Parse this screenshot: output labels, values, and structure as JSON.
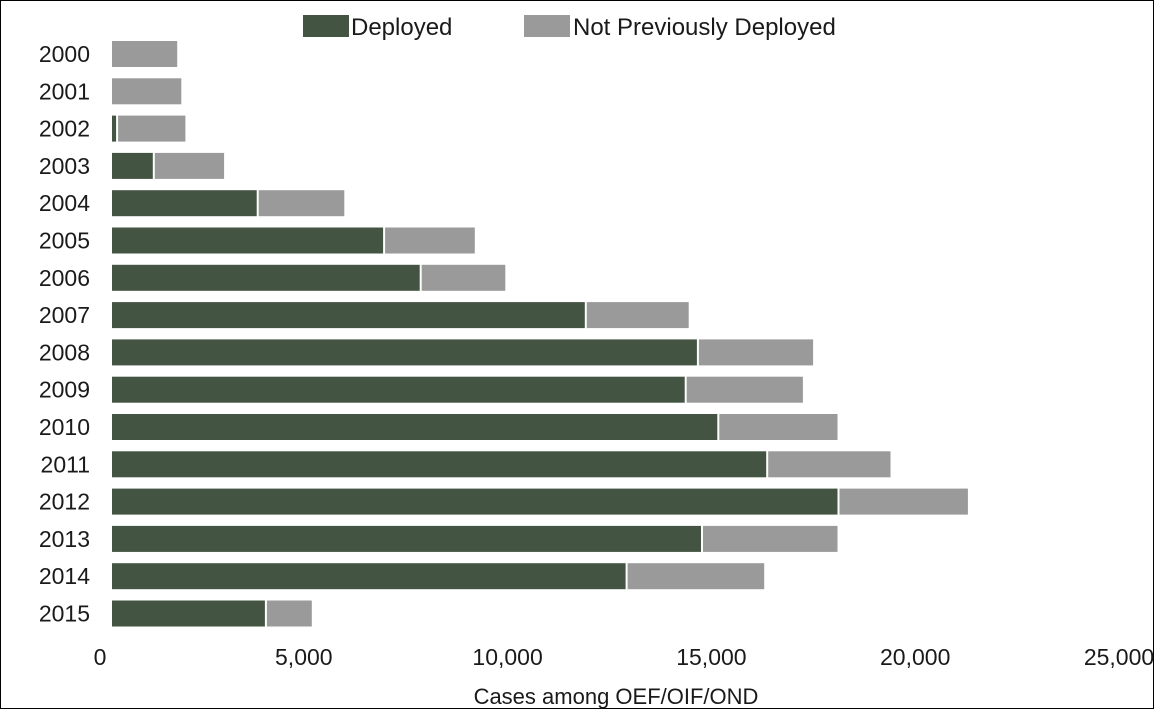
{
  "chart_data": {
    "type": "bar",
    "orientation": "horizontal",
    "stacked": true,
    "categories": [
      "2000",
      "2001",
      "2002",
      "2003",
      "2004",
      "2005",
      "2006",
      "2007",
      "2008",
      "2009",
      "2010",
      "2011",
      "2012",
      "2013",
      "2014",
      "2015"
    ],
    "series": [
      {
        "name": "Deployed",
        "color": "#435443",
        "values": [
          0,
          0,
          100,
          1000,
          3550,
          6650,
          7550,
          11600,
          14350,
          14050,
          14850,
          16050,
          17800,
          14450,
          12600,
          3750
        ]
      },
      {
        "name": "Not Previously Deployed",
        "color": "#9a9a9a",
        "values": [
          1600,
          1700,
          1700,
          1750,
          2150,
          2250,
          2100,
          2550,
          2850,
          2900,
          2950,
          3050,
          3200,
          3350,
          3400,
          1150
        ]
      }
    ],
    "xlabel": "Cases among OEF/OIF/OND",
    "ylabel": "",
    "xlim": [
      0,
      25000
    ],
    "xticks": [
      0,
      5000,
      10000,
      15000,
      20000,
      25000
    ],
    "xtick_labels": [
      "0",
      "5,000",
      "10,000",
      "15,000",
      "20,000",
      "25,000"
    ],
    "grid": false,
    "legend": "top"
  }
}
